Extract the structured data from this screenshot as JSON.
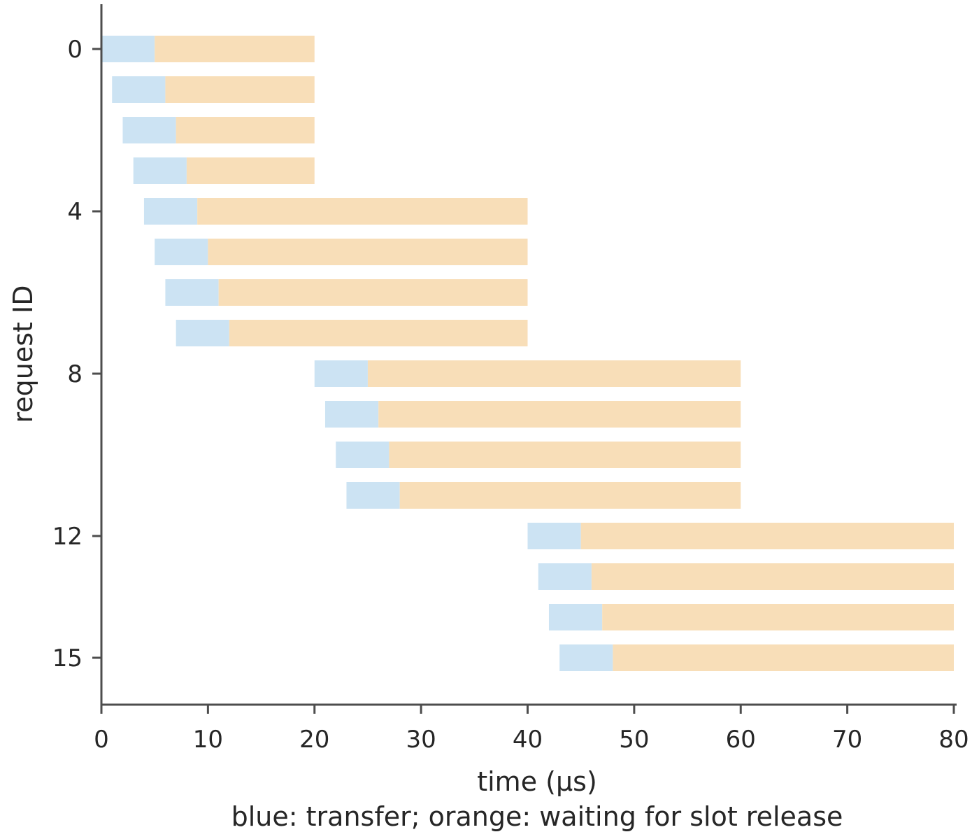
{
  "chart_data": {
    "type": "bar",
    "orientation": "horizontal-stacked",
    "xlabel": "time (µs)",
    "ylabel": "request ID",
    "caption": "blue: transfer; orange: waiting for slot release",
    "xlim": [
      0,
      80
    ],
    "ylim": [
      -0.5,
      15.5
    ],
    "y_inverted": true,
    "x_ticks": [
      0,
      10,
      20,
      30,
      40,
      50,
      60,
      70,
      80
    ],
    "y_ticks": [
      0,
      4,
      8,
      12,
      15
    ],
    "grid": false,
    "colors": {
      "transfer": "#cce3f3",
      "waiting": "#f8deb8",
      "axis": "#4d4d4d",
      "text": "#262626"
    },
    "series": [
      {
        "key": "transfer",
        "start": [
          0,
          1,
          2,
          3,
          4,
          5,
          6,
          7,
          20,
          21,
          22,
          23,
          40,
          41,
          42,
          43
        ],
        "end": [
          5,
          6,
          7,
          8,
          9,
          10,
          11,
          12,
          25,
          26,
          27,
          28,
          45,
          46,
          47,
          48
        ]
      },
      {
        "key": "waiting",
        "start": [
          5,
          6,
          7,
          8,
          9,
          10,
          11,
          12,
          25,
          26,
          27,
          28,
          45,
          46,
          47,
          48
        ],
        "end": [
          20,
          20,
          20,
          20,
          40,
          40,
          40,
          40,
          60,
          60,
          60,
          60,
          80,
          80,
          80,
          80
        ]
      }
    ],
    "requests": [
      0,
      1,
      2,
      3,
      4,
      5,
      6,
      7,
      8,
      9,
      10,
      11,
      12,
      13,
      14,
      15
    ]
  }
}
